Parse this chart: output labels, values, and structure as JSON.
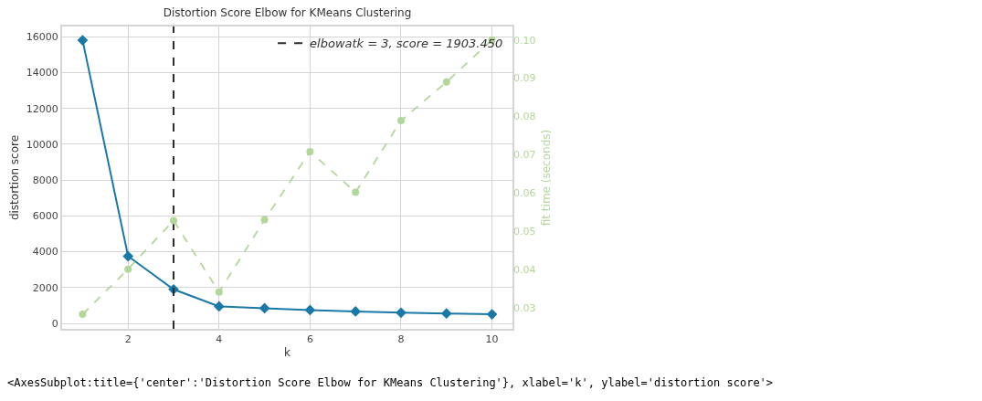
{
  "chart_data": {
    "type": "line",
    "title": "Distortion Score Elbow for KMeans Clustering",
    "xlabel": "k",
    "ylabel": "distortion score",
    "y2label": "fit time (seconds)",
    "x": [
      1,
      2,
      3,
      4,
      5,
      6,
      7,
      8,
      9,
      10
    ],
    "series": [
      {
        "color": "#1a78a8",
        "marker": "diamond",
        "line_style": "solid",
        "values": [
          15800,
          3750,
          1903.45,
          950,
          850,
          750,
          670,
          600,
          560,
          510
        ]
      },
      {
        "color": "#b3d69b",
        "marker": "circle",
        "line_style": "dashed",
        "axis": "y2",
        "values": [
          0.0283,
          0.0401,
          0.0528,
          0.0341,
          0.053,
          0.0708,
          0.0602,
          0.0789,
          0.089,
          0.1
        ]
      }
    ],
    "xlim": [
      0.55,
      10.45
    ],
    "xticks": [
      2,
      4,
      6,
      8,
      10
    ],
    "ylim": [
      -300,
      16570
    ],
    "yticks": [
      0,
      2000,
      4000,
      6000,
      8000,
      10000,
      12000,
      14000,
      16000
    ],
    "y2lim": [
      0.0245,
      0.1035
    ],
    "y2ticks": [
      0.03,
      0.04,
      0.05,
      0.06,
      0.07,
      0.08,
      0.09,
      {
        "value": 0.1,
        "label": "0.10"
      }
    ],
    "ref_lines": [
      {
        "axis": "x",
        "value": 3,
        "label": "elbowatk = 3, score = 1903.450",
        "color": "#2b2b2b",
        "line_style": "dashed"
      }
    ],
    "grid": true,
    "legend": "top right",
    "annotations": [
      "<AxesSubplot:title={'center':'Distortion Score Elbow for KMeans Clustering'}, xlabel='k', ylabel='distortion score'>"
    ]
  }
}
